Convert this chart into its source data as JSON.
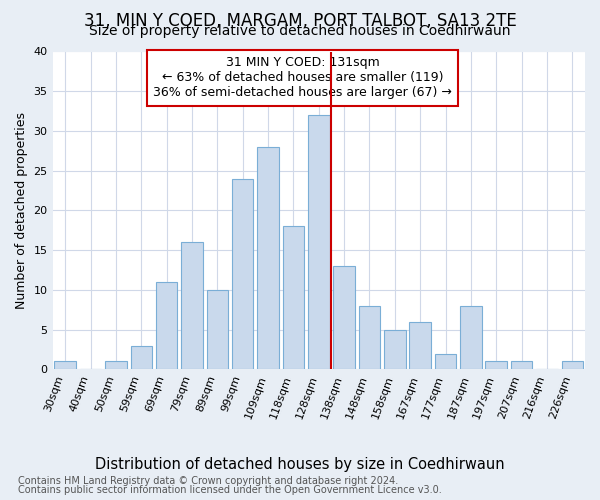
{
  "title": "31, MIN Y COED, MARGAM, PORT TALBOT, SA13 2TE",
  "subtitle": "Size of property relative to detached houses in Coedhirwaun",
  "xlabel": "Distribution of detached houses by size in Coedhirwaun",
  "ylabel": "Number of detached properties",
  "footer1": "Contains HM Land Registry data © Crown copyright and database right 2024.",
  "footer2": "Contains public sector information licensed under the Open Government Licence v3.0.",
  "categories": [
    "30sqm",
    "40sqm",
    "50sqm",
    "59sqm",
    "69sqm",
    "79sqm",
    "89sqm",
    "99sqm",
    "109sqm",
    "118sqm",
    "128sqm",
    "138sqm",
    "148sqm",
    "158sqm",
    "167sqm",
    "177sqm",
    "187sqm",
    "197sqm",
    "207sqm",
    "216sqm",
    "226sqm"
  ],
  "values": [
    1,
    0,
    1,
    3,
    11,
    16,
    10,
    24,
    28,
    18,
    32,
    13,
    8,
    5,
    6,
    2,
    8,
    1,
    1,
    0,
    1
  ],
  "bar_color": "#c9d9ec",
  "bar_edge_color": "#7aaed6",
  "vline_x_idx": 10,
  "vline_color": "#cc0000",
  "annotation_text": "31 MIN Y COED: 131sqm\n← 63% of detached houses are smaller (119)\n36% of semi-detached houses are larger (67) →",
  "annotation_box_color": "#ffffff",
  "annotation_box_edge": "#cc0000",
  "ylim": [
    0,
    40
  ],
  "yticks": [
    0,
    5,
    10,
    15,
    20,
    25,
    30,
    35,
    40
  ],
  "outer_bg_color": "#e8eef5",
  "plot_bg_color": "#ffffff",
  "grid_color": "#d0d8e8",
  "title_fontsize": 12,
  "subtitle_fontsize": 10,
  "xlabel_fontsize": 10.5,
  "ylabel_fontsize": 9,
  "tick_fontsize": 8,
  "footer_fontsize": 7,
  "annotation_fontsize": 9
}
